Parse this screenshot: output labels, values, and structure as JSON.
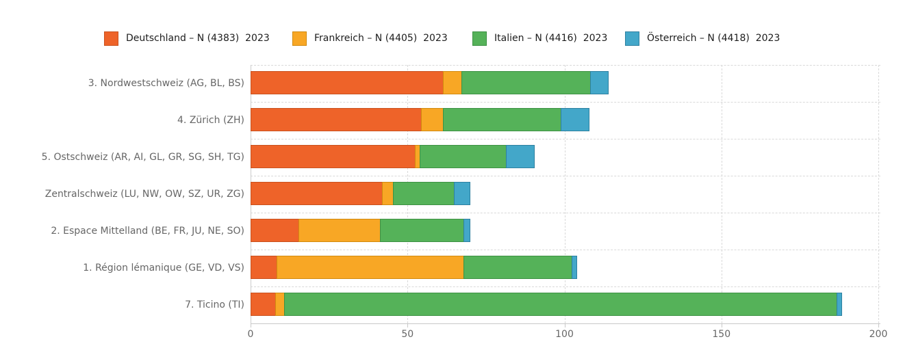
{
  "chart_data": {
    "type": "bar",
    "orientation": "horizontal",
    "stacked": true,
    "title": "",
    "legend_position": "top",
    "grid": "dashed",
    "categories": [
      "3. Nordwestschweiz (AG, BL, BS)",
      "4. Zürich (ZH)",
      "5. Ostschweiz (AR, AI, GL, GR, SG, SH, TG)",
      "Zentralschweiz (LU, NW, OW, SZ, UR, ZG)",
      "2. Espace Mittelland (BE, FR, JU, NE, SO)",
      "1. Région lémanique (GE, VD, VS)",
      "7. Ticino (TI)"
    ],
    "series": [
      {
        "name": "Deutschland – N (4383)  2023",
        "color": "#ee6329",
        "border_color": "#c9511e",
        "values": [
          61.5,
          54.5,
          52.5,
          42,
          15.5,
          8.5,
          8
        ]
      },
      {
        "name": "Frankreich – N (4405)  2023",
        "color": "#f8a725",
        "border_color": "#d18a0f",
        "values": [
          6,
          7,
          1.5,
          3.5,
          26,
          59.5,
          3
        ]
      },
      {
        "name": "Italien – N (4416)  2023",
        "color": "#55b259",
        "border_color": "#3c9143",
        "values": [
          41,
          37.5,
          27.5,
          19.5,
          26.5,
          34.5,
          176
        ]
      },
      {
        "name": "Österreich – N (4418)  2023",
        "color": "#43a7c9",
        "border_color": "#2d80a0",
        "values": [
          5.5,
          9,
          9,
          5,
          2,
          1.5,
          1.5
        ]
      }
    ],
    "xlim": [
      0,
      200
    ],
    "xticks": [
      0,
      50,
      100,
      150,
      200
    ],
    "axis_color": "#c9c9c9",
    "grid_color": "#d9d9d9",
    "label_color": "#666666",
    "legend_text_color": "#1c1c1c"
  }
}
